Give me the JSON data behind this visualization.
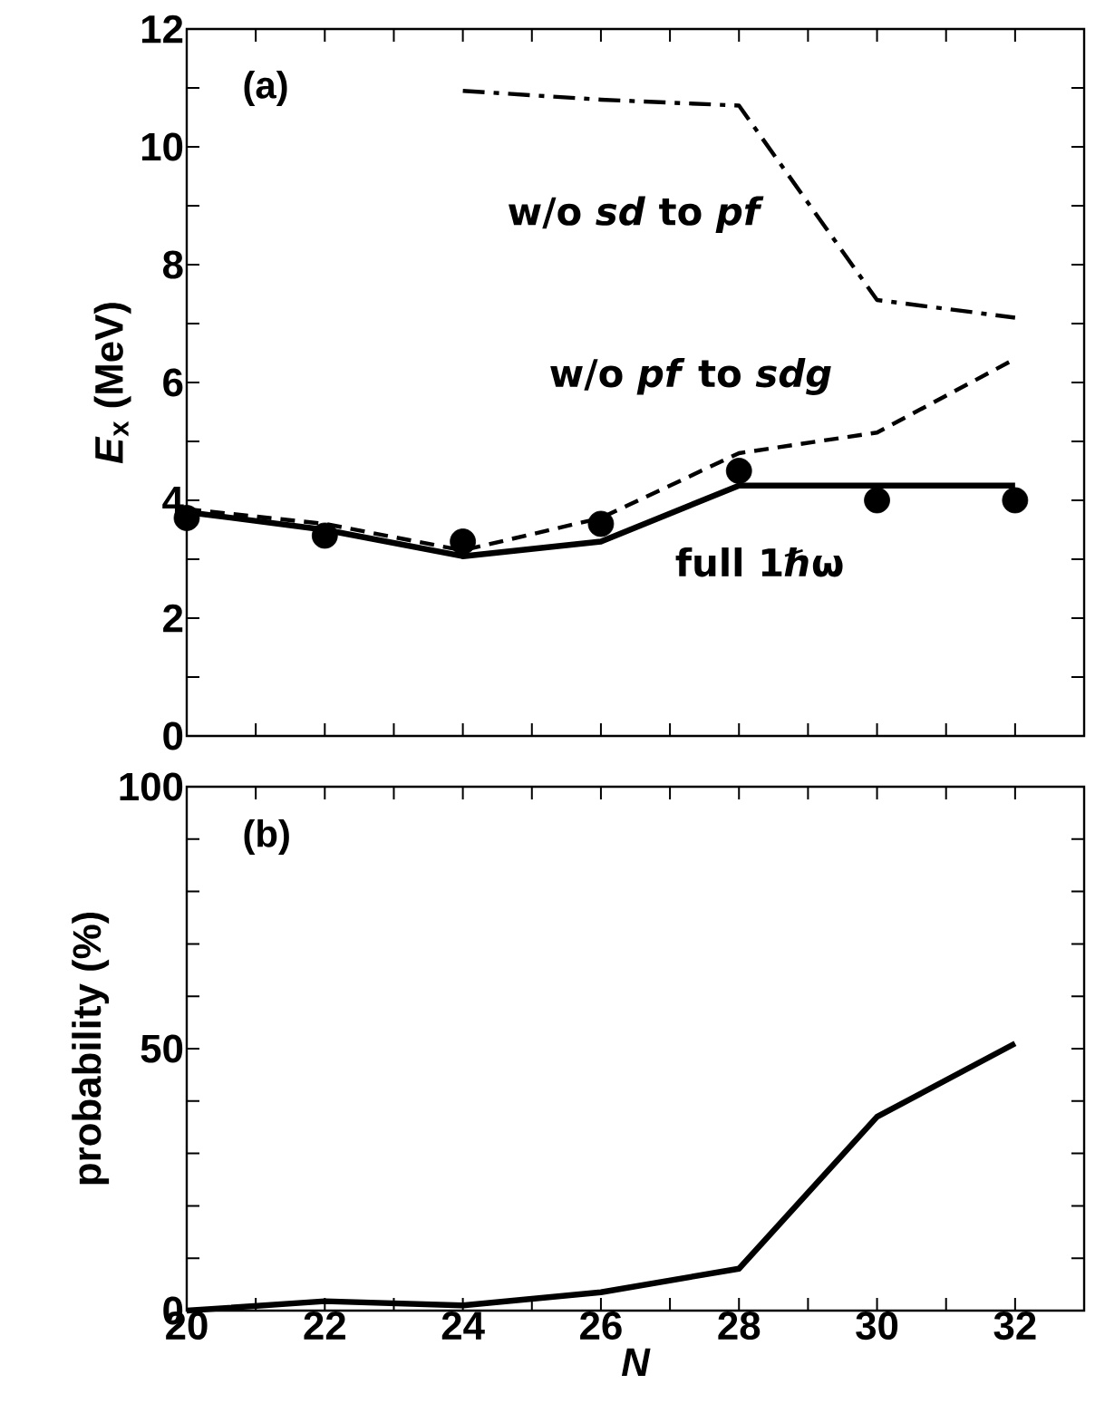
{
  "chart_data": [
    {
      "type": "line",
      "ylabel": "*E*$_{x}$ (MeV)",
      "xlim": [
        20,
        33
      ],
      "ylim": [
        0,
        12
      ],
      "xticks": [
        20,
        {
          "value": 21,
          "label": null
        },
        22,
        {
          "value": 23,
          "label": null
        },
        24,
        {
          "value": 25,
          "label": null
        },
        26,
        {
          "value": 27,
          "label": null
        },
        28,
        {
          "value": 29,
          "label": null
        },
        30,
        {
          "value": 31,
          "label": null
        },
        32
      ],
      "yticks": [
        0,
        {
          "value": 1,
          "label": null
        },
        2,
        {
          "value": 3,
          "label": null
        },
        4,
        {
          "value": 5,
          "label": null
        },
        6,
        {
          "value": 7,
          "label": null
        },
        8,
        {
          "value": 9,
          "label": null
        },
        10,
        {
          "value": 11,
          "label": null
        },
        12
      ],
      "tick_labels": "y",
      "annotations": [
        "(a)"
      ],
      "x": [
        20,
        22,
        24,
        26,
        28,
        30,
        32
      ],
      "series": [
        {
          "type": "scatter",
          "marker": "circle",
          "color": "#000000",
          "values": [
            3.7,
            3.4,
            3.3,
            3.6,
            4.5,
            4.0,
            4.0
          ]
        },
        {
          "name": "full 1ℏω",
          "line_style": "solid",
          "color": "#000000",
          "values": [
            3.8,
            3.5,
            3.05,
            3.3,
            4.25,
            4.25,
            4.25
          ]
        },
        {
          "name": "w/o *pf* to *sdg*",
          "line_style": "dashed",
          "color": "#000000",
          "values": [
            3.85,
            3.6,
            3.15,
            3.7,
            4.8,
            5.15,
            6.4
          ]
        },
        {
          "name": "w/o *sd* to *pf*",
          "line_style": "dashdot",
          "color": "#000000",
          "values": [
            null,
            null,
            10.95,
            10.8,
            10.7,
            7.4,
            7.1
          ]
        }
      ]
    },
    {
      "type": "line",
      "xlabel": "N",
      "ylabel": "probability (%)",
      "xlim": [
        20,
        33
      ],
      "ylim": [
        0,
        100
      ],
      "xticks": [
        20,
        {
          "value": 21,
          "label": null
        },
        22,
        {
          "value": 23,
          "label": null
        },
        24,
        {
          "value": 25,
          "label": null
        },
        26,
        {
          "value": 27,
          "label": null
        },
        28,
        {
          "value": 29,
          "label": null
        },
        30,
        {
          "value": 31,
          "label": null
        },
        32
      ],
      "yticks": [
        0,
        {
          "value": 10,
          "label": null
        },
        {
          "value": 20,
          "label": null
        },
        {
          "value": 30,
          "label": null
        },
        {
          "value": 40,
          "label": null
        },
        50,
        {
          "value": 60,
          "label": null
        },
        {
          "value": 70,
          "label": null
        },
        {
          "value": 80,
          "label": null
        },
        {
          "value": 90,
          "label": null
        },
        100
      ],
      "annotations": [
        "(b)"
      ],
      "x": [
        20,
        22,
        24,
        26,
        28,
        30,
        32
      ],
      "series": [
        {
          "line_style": "solid",
          "color": "#000000",
          "values": [
            0,
            1.8,
            1,
            3.5,
            8,
            37,
            51
          ]
        }
      ]
    }
  ]
}
